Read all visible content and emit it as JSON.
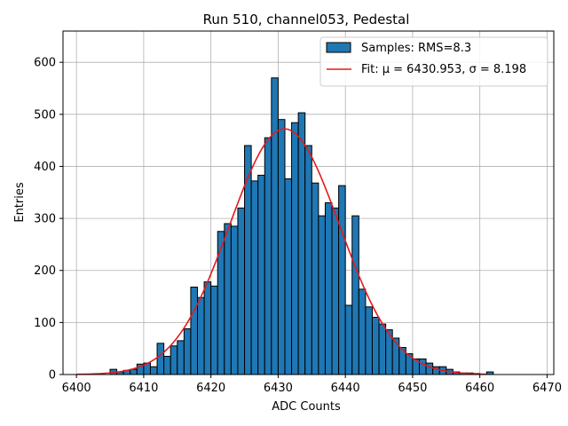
{
  "chart_data": {
    "type": "bar",
    "title": "Run 510, channel053, Pedestal",
    "xlabel": "ADC Counts",
    "ylabel": "Entries",
    "xlim": [
      6398,
      6471
    ],
    "ylim": [
      0,
      660
    ],
    "xticks": [
      6400,
      6410,
      6420,
      6430,
      6440,
      6450,
      6460,
      6470
    ],
    "yticks": [
      0,
      100,
      200,
      300,
      400,
      500,
      600
    ],
    "grid": true,
    "legend_position": "top-right",
    "histogram": {
      "name": "Samples: RMS=8.3",
      "color": "#1f77b4",
      "bin_start": 6405,
      "bin_width": 1,
      "counts": [
        10,
        5,
        8,
        10,
        20,
        22,
        15,
        60,
        35,
        55,
        65,
        88,
        168,
        148,
        178,
        170,
        275,
        290,
        285,
        320,
        440,
        372,
        383,
        455,
        570,
        490,
        376,
        484,
        503,
        440,
        368,
        305,
        330,
        320,
        363,
        133,
        305,
        164,
        130,
        110,
        97,
        86,
        70,
        52,
        40,
        30,
        30,
        22,
        15,
        15,
        10,
        5,
        3,
        3,
        2,
        0,
        5
      ]
    },
    "fit": {
      "name": "Fit: μ = 6430.953, σ = 8.198",
      "color": "#e31a1c",
      "mu": 6430.953,
      "sigma": 8.198,
      "amplitude": 472,
      "x_range": [
        6400,
        6461
      ]
    }
  }
}
